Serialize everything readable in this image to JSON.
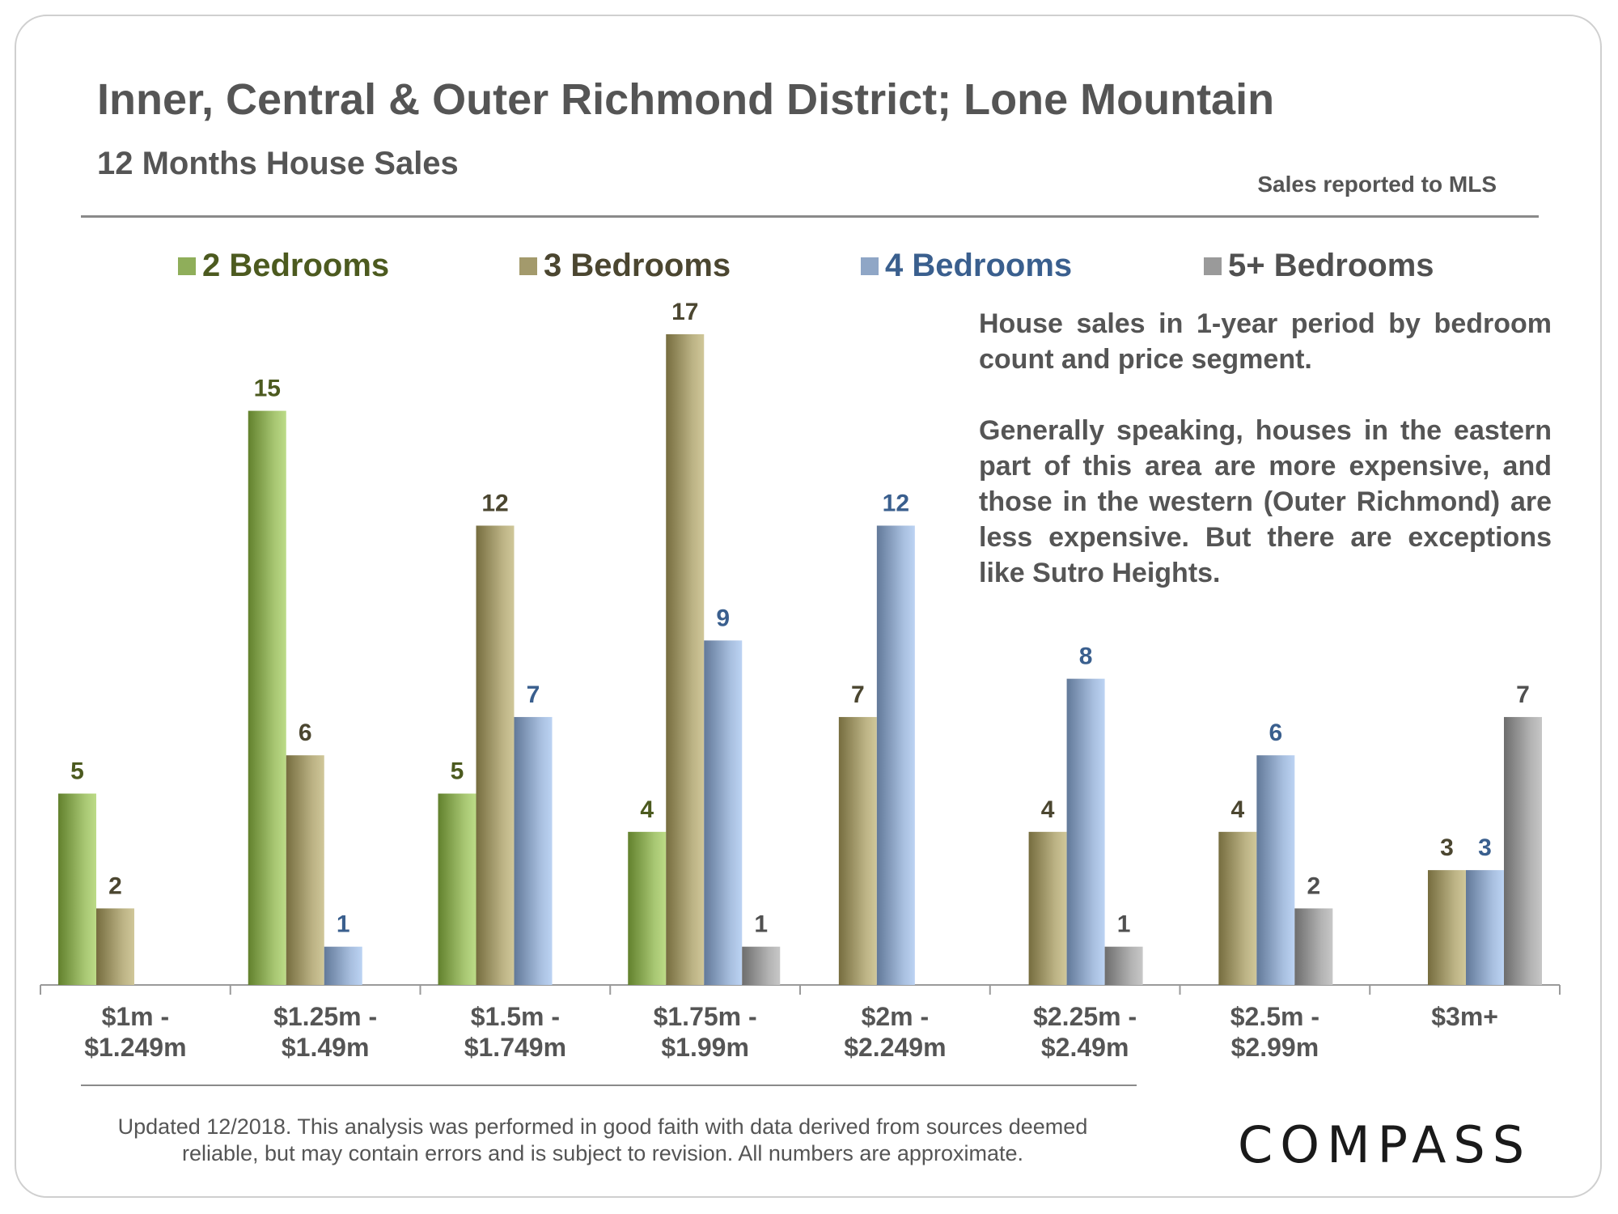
{
  "header": {
    "title": "Inner, Central & Outer Richmond District; Lone Mountain",
    "subtitle": "12 Months House Sales",
    "source": "Sales reported to MLS"
  },
  "note": {
    "p1": "House sales in 1-year period by bedroom count and price segment.",
    "p2": "Generally speaking, houses in the eastern part of this area are more expensive, and those in the western (Outer Richmond) are less expensive. But there are exceptions like Sutro Heights."
  },
  "footer": {
    "line1": "Updated 12/2018. This analysis was performed in good faith with data derived from sources deemed",
    "line2": "reliable, but may contain errors and is subject to revision. All numbers are approximate.",
    "logo": "COMPASS"
  },
  "chart_data": {
    "type": "bar",
    "title": "12 Months House Sales",
    "ylim": [
      0,
      17
    ],
    "categories": [
      [
        "$1m -",
        "$1.249m"
      ],
      [
        "$1.25m -",
        "$1.49m"
      ],
      [
        "$1.5m -",
        "$1.749m"
      ],
      [
        "$1.75m -",
        "$1.99m"
      ],
      [
        "$2m -",
        "$2.249m"
      ],
      [
        "$2.25m -",
        "$2.49m"
      ],
      [
        "$2.5m -",
        "$2.99m"
      ],
      [
        "$3m+"
      ]
    ],
    "series": [
      {
        "name": "2 Bedrooms",
        "color": "#8fae5a",
        "label_color": "#4c5a1f",
        "values": [
          5,
          15,
          5,
          4,
          null,
          null,
          null,
          null
        ]
      },
      {
        "name": "3 Bedrooms",
        "color": "#a39a6c",
        "label_color": "#4b4630",
        "values": [
          2,
          6,
          12,
          17,
          7,
          4,
          4,
          3
        ]
      },
      {
        "name": "4 Bedrooms",
        "color": "#8fa6c6",
        "label_color": "#3a5f8e",
        "values": [
          null,
          1,
          7,
          9,
          12,
          8,
          6,
          3
        ]
      },
      {
        "name": "5+ Bedrooms",
        "color": "#9a9a9a",
        "label_color": "#505050",
        "values": [
          null,
          null,
          null,
          1,
          null,
          1,
          2,
          7
        ]
      }
    ]
  }
}
